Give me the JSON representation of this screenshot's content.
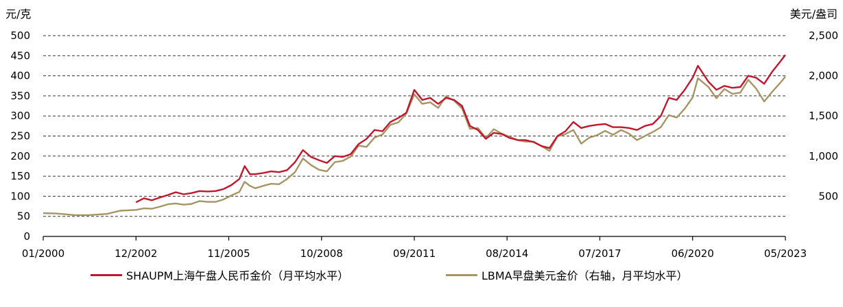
{
  "chart_data": {
    "type": "line",
    "y_left_unit": "元/克",
    "y_right_unit": "美元/盎司",
    "ylim_left": [
      0,
      500
    ],
    "ylim_right": [
      0,
      2500
    ],
    "yticks_left": [
      "0",
      "50",
      "100",
      "150",
      "200",
      "250",
      "300",
      "350",
      "400",
      "450",
      "500"
    ],
    "yticks_right": [
      "",
      "500",
      "1,000",
      "1,500",
      "2,000",
      "2,500"
    ],
    "xlim": [
      "2000-01",
      "2023-05"
    ],
    "xticks": [
      "01/2000",
      "12/2002",
      "11/2005",
      "10/2008",
      "09/2011",
      "08/2014",
      "07/2017",
      "06/2020",
      "05/2023"
    ],
    "grid": "horizontal dashed",
    "legend_position": "bottom",
    "series": [
      {
        "name": "SHAUPM上海午盘人民币金价（月平均水平）",
        "axis": "left",
        "color": "#c0172d",
        "points": [
          [
            "2002-12",
            85
          ],
          [
            "2003-03",
            95
          ],
          [
            "2003-06",
            90
          ],
          [
            "2003-09",
            97
          ],
          [
            "2003-12",
            103
          ],
          [
            "2004-03",
            110
          ],
          [
            "2004-06",
            105
          ],
          [
            "2004-09",
            108
          ],
          [
            "2004-12",
            113
          ],
          [
            "2005-03",
            112
          ],
          [
            "2005-06",
            113
          ],
          [
            "2005-09",
            118
          ],
          [
            "2005-12",
            128
          ],
          [
            "2006-03",
            143
          ],
          [
            "2006-05",
            175
          ],
          [
            "2006-07",
            155
          ],
          [
            "2006-09",
            155
          ],
          [
            "2006-12",
            158
          ],
          [
            "2007-03",
            162
          ],
          [
            "2007-06",
            160
          ],
          [
            "2007-09",
            165
          ],
          [
            "2007-12",
            185
          ],
          [
            "2008-03",
            215
          ],
          [
            "2008-06",
            198
          ],
          [
            "2008-09",
            190
          ],
          [
            "2008-12",
            183
          ],
          [
            "2009-03",
            200
          ],
          [
            "2009-06",
            198
          ],
          [
            "2009-09",
            205
          ],
          [
            "2009-12",
            230
          ],
          [
            "2010-03",
            243
          ],
          [
            "2010-06",
            265
          ],
          [
            "2010-09",
            262
          ],
          [
            "2010-12",
            285
          ],
          [
            "2011-03",
            295
          ],
          [
            "2011-06",
            308
          ],
          [
            "2011-09",
            365
          ],
          [
            "2011-12",
            340
          ],
          [
            "2012-03",
            345
          ],
          [
            "2012-06",
            330
          ],
          [
            "2012-09",
            345
          ],
          [
            "2012-12",
            340
          ],
          [
            "2013-03",
            325
          ],
          [
            "2013-06",
            275
          ],
          [
            "2013-09",
            265
          ],
          [
            "2013-12",
            243
          ],
          [
            "2014-03",
            258
          ],
          [
            "2014-06",
            255
          ],
          [
            "2014-09",
            245
          ],
          [
            "2014-12",
            240
          ],
          [
            "2015-03",
            240
          ],
          [
            "2015-06",
            235
          ],
          [
            "2015-09",
            225
          ],
          [
            "2015-12",
            220
          ],
          [
            "2016-03",
            250
          ],
          [
            "2016-06",
            262
          ],
          [
            "2016-09",
            285
          ],
          [
            "2016-12",
            270
          ],
          [
            "2017-03",
            275
          ],
          [
            "2017-06",
            278
          ],
          [
            "2017-09",
            280
          ],
          [
            "2017-12",
            272
          ],
          [
            "2018-03",
            272
          ],
          [
            "2018-06",
            270
          ],
          [
            "2018-09",
            265
          ],
          [
            "2018-12",
            275
          ],
          [
            "2019-03",
            280
          ],
          [
            "2019-06",
            300
          ],
          [
            "2019-09",
            345
          ],
          [
            "2019-12",
            340
          ],
          [
            "2020-03",
            365
          ],
          [
            "2020-06",
            395
          ],
          [
            "2020-08",
            425
          ],
          [
            "2020-12",
            385
          ],
          [
            "2021-03",
            365
          ],
          [
            "2021-06",
            375
          ],
          [
            "2021-09",
            370
          ],
          [
            "2021-12",
            372
          ],
          [
            "2022-03",
            400
          ],
          [
            "2022-06",
            395
          ],
          [
            "2022-09",
            380
          ],
          [
            "2022-12",
            410
          ],
          [
            "2023-03",
            435
          ],
          [
            "2023-05",
            452
          ]
        ]
      },
      {
        "name": "LBMA早盘美元金价（右轴，月平均水平）",
        "axis": "right",
        "color": "#a69465",
        "points": [
          [
            "2000-01",
            290
          ],
          [
            "2000-06",
            285
          ],
          [
            "2001-01",
            265
          ],
          [
            "2001-06",
            265
          ],
          [
            "2002-01",
            280
          ],
          [
            "2002-06",
            320
          ],
          [
            "2002-12",
            330
          ],
          [
            "2003-03",
            350
          ],
          [
            "2003-06",
            345
          ],
          [
            "2003-09",
            370
          ],
          [
            "2003-12",
            400
          ],
          [
            "2004-03",
            410
          ],
          [
            "2004-06",
            395
          ],
          [
            "2004-09",
            405
          ],
          [
            "2004-12",
            440
          ],
          [
            "2005-03",
            430
          ],
          [
            "2005-06",
            430
          ],
          [
            "2005-09",
            460
          ],
          [
            "2005-12",
            510
          ],
          [
            "2006-03",
            555
          ],
          [
            "2006-05",
            680
          ],
          [
            "2006-07",
            630
          ],
          [
            "2006-09",
            600
          ],
          [
            "2006-12",
            630
          ],
          [
            "2007-03",
            655
          ],
          [
            "2007-06",
            650
          ],
          [
            "2007-09",
            715
          ],
          [
            "2007-12",
            800
          ],
          [
            "2008-03",
            970
          ],
          [
            "2008-06",
            890
          ],
          [
            "2008-09",
            830
          ],
          [
            "2008-12",
            810
          ],
          [
            "2009-03",
            925
          ],
          [
            "2009-06",
            940
          ],
          [
            "2009-09",
            995
          ],
          [
            "2009-12",
            1130
          ],
          [
            "2010-03",
            1115
          ],
          [
            "2010-06",
            1230
          ],
          [
            "2010-09",
            1270
          ],
          [
            "2010-12",
            1390
          ],
          [
            "2011-03",
            1420
          ],
          [
            "2011-06",
            1530
          ],
          [
            "2011-09",
            1770
          ],
          [
            "2011-12",
            1650
          ],
          [
            "2012-03",
            1670
          ],
          [
            "2012-06",
            1600
          ],
          [
            "2012-09",
            1745
          ],
          [
            "2012-12",
            1690
          ],
          [
            "2013-03",
            1595
          ],
          [
            "2013-06",
            1340
          ],
          [
            "2013-09",
            1350
          ],
          [
            "2013-12",
            1225
          ],
          [
            "2014-03",
            1335
          ],
          [
            "2014-06",
            1280
          ],
          [
            "2014-09",
            1240
          ],
          [
            "2014-12",
            1200
          ],
          [
            "2015-03",
            1180
          ],
          [
            "2015-06",
            1180
          ],
          [
            "2015-09",
            1125
          ],
          [
            "2015-12",
            1065
          ],
          [
            "2016-03",
            1245
          ],
          [
            "2016-06",
            1275
          ],
          [
            "2016-09",
            1325
          ],
          [
            "2016-12",
            1155
          ],
          [
            "2017-03",
            1230
          ],
          [
            "2017-06",
            1260
          ],
          [
            "2017-09",
            1315
          ],
          [
            "2017-12",
            1265
          ],
          [
            "2018-03",
            1325
          ],
          [
            "2018-06",
            1280
          ],
          [
            "2018-09",
            1200
          ],
          [
            "2018-12",
            1250
          ],
          [
            "2019-03",
            1300
          ],
          [
            "2019-06",
            1360
          ],
          [
            "2019-09",
            1510
          ],
          [
            "2019-12",
            1480
          ],
          [
            "2020-03",
            1590
          ],
          [
            "2020-06",
            1730
          ],
          [
            "2020-08",
            1970
          ],
          [
            "2020-12",
            1860
          ],
          [
            "2021-03",
            1720
          ],
          [
            "2021-06",
            1835
          ],
          [
            "2021-09",
            1775
          ],
          [
            "2021-12",
            1790
          ],
          [
            "2022-03",
            1950
          ],
          [
            "2022-06",
            1840
          ],
          [
            "2022-09",
            1680
          ],
          [
            "2022-12",
            1800
          ],
          [
            "2023-03",
            1910
          ],
          [
            "2023-05",
            1990
          ]
        ]
      }
    ]
  }
}
